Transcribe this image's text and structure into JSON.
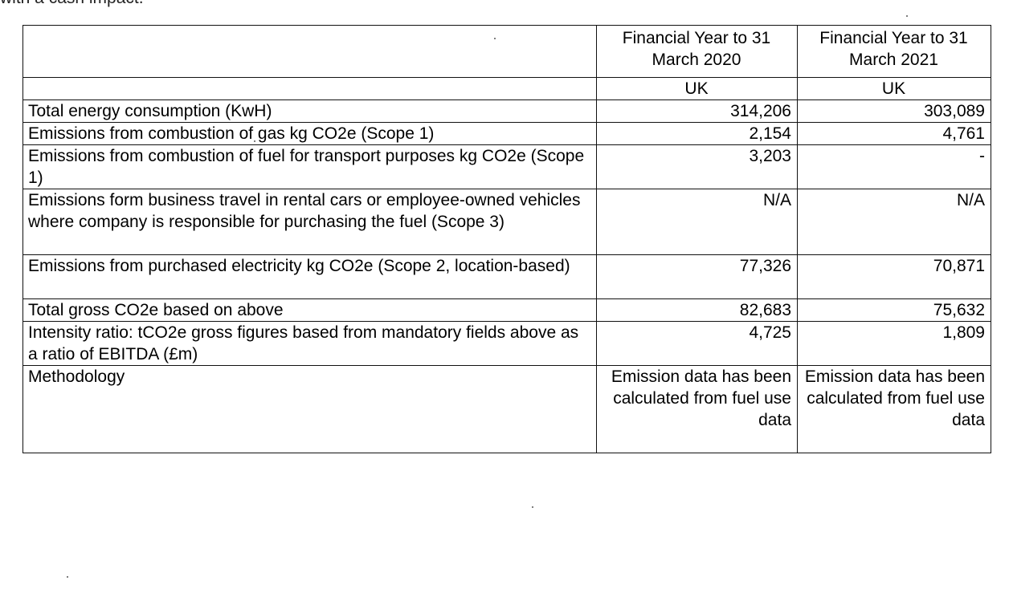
{
  "header_fragment": "with a cash impact.",
  "table": {
    "columns": [
      "",
      "Financial Year to 31 March 2020",
      "Financial Year to 31 March 2021"
    ],
    "region_row": [
      "",
      "UK",
      "UK"
    ],
    "rows": [
      {
        "label": "Total energy consumption (KwH)",
        "fy2020": "314,206",
        "fy2021": "303,089"
      },
      {
        "label": "Emissions from combustion of gas kg CO2e (Scope 1)",
        "fy2020": "2,154",
        "fy2021": "4,761"
      },
      {
        "label": "Emissions from combustion of fuel for transport purposes kg CO2e (Scope 1)",
        "fy2020": "3,203",
        "fy2021": "-"
      },
      {
        "label": "Emissions form business travel in rental cars or employee-owned vehicles where company is responsible for purchasing the fuel (Scope 3)",
        "fy2020": "N/A",
        "fy2021": "N/A"
      },
      {
        "label": "Emissions from purchased electricity kg CO2e (Scope 2, location-based)",
        "fy2020": "77,326",
        "fy2021": "70,871"
      },
      {
        "label": "Total gross CO2e based on above",
        "fy2020": "82,683",
        "fy2021": "75,632"
      },
      {
        "label": "Intensity ratio: tCO2e gross figures based from mandatory fields above as a ratio of EBITDA (£m)",
        "fy2020": "4,725",
        "fy2021": "1,809"
      },
      {
        "label": "Methodology",
        "fy2020": "Emission data has been calculated from fuel use data",
        "fy2021": "Emission data has been calculated from fuel use data"
      }
    ]
  }
}
